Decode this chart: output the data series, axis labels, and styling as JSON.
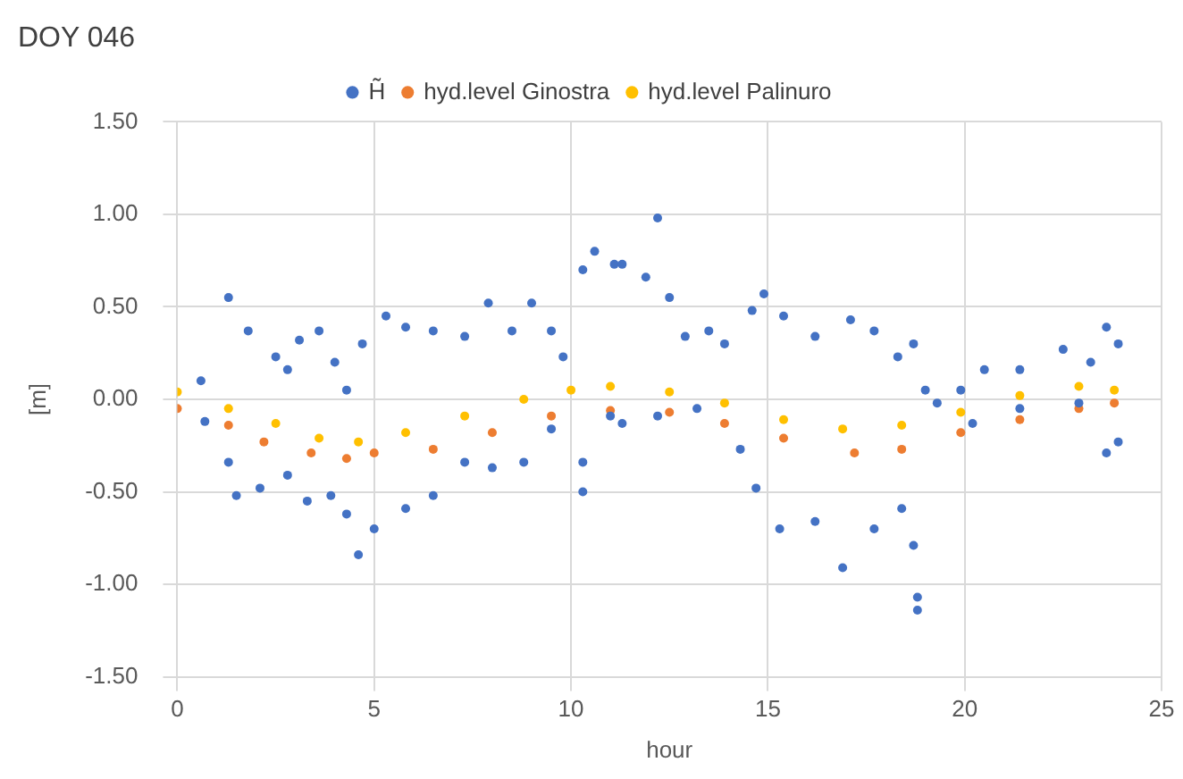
{
  "chart_data": {
    "type": "scatter",
    "title": "DOY 046",
    "xlabel": "hour",
    "ylabel": "[m]",
    "xlim": [
      0,
      25
    ],
    "xticks": [
      0,
      5,
      10,
      15,
      20,
      25
    ],
    "ylim": [
      -1.5,
      1.5
    ],
    "yticks": [
      {
        "value": 1.5,
        "label": "1.50"
      },
      {
        "value": 1,
        "label": "1.00"
      },
      {
        "value": 0.5,
        "label": "0.50"
      },
      {
        "value": 0,
        "label": "0.00"
      },
      {
        "value": -0.5,
        "label": "-0.50"
      },
      {
        "value": -1,
        "label": "-1.00"
      },
      {
        "value": -1.5,
        "label": "-1.50"
      }
    ],
    "grid": true,
    "legend": "top",
    "marker": "circle",
    "series": [
      {
        "name": "H̃",
        "color": "#4472c4",
        "x": [
          0.6,
          0.7,
          1.3,
          1.3,
          1.5,
          1.8,
          2.1,
          2.5,
          2.8,
          2.8,
          3.1,
          3.3,
          3.6,
          3.9,
          4.0,
          4.3,
          4.3,
          4.6,
          4.7,
          5.0,
          5.3,
          5.8,
          5.8,
          6.5,
          6.5,
          7.3,
          7.3,
          7.9,
          8.0,
          8.5,
          8.8,
          9.0,
          9.5,
          9.5,
          9.8,
          10.3,
          10.3,
          10.3,
          10.6,
          11.0,
          11.1,
          11.3,
          11.3,
          11.9,
          12.2,
          12.2,
          12.5,
          12.9,
          13.2,
          13.5,
          13.9,
          14.3,
          14.6,
          14.7,
          14.9,
          15.3,
          15.4,
          16.2,
          16.2,
          16.9,
          17.1,
          17.7,
          17.7,
          18.3,
          18.4,
          18.7,
          18.7,
          18.8,
          18.8,
          19.0,
          19.3,
          19.9,
          20.2,
          20.5,
          21.4,
          21.4,
          22.5,
          22.9,
          23.2,
          23.6,
          23.6,
          23.9,
          23.9
        ],
        "values": [
          0.1,
          -0.12,
          0.55,
          -0.34,
          -0.52,
          0.37,
          -0.48,
          0.23,
          0.16,
          -0.41,
          0.32,
          -0.55,
          0.37,
          -0.52,
          0.2,
          0.05,
          -0.62,
          -0.84,
          0.3,
          -0.7,
          0.45,
          0.39,
          -0.59,
          0.37,
          -0.52,
          0.34,
          -0.34,
          0.52,
          -0.37,
          0.37,
          -0.34,
          0.52,
          0.37,
          -0.16,
          0.23,
          0.7,
          -0.34,
          -0.5,
          0.8,
          -0.09,
          0.73,
          0.73,
          -0.13,
          0.66,
          0.98,
          -0.09,
          0.55,
          0.34,
          -0.05,
          0.37,
          0.3,
          -0.27,
          0.48,
          -0.48,
          0.57,
          -0.7,
          0.45,
          0.34,
          -0.66,
          -0.91,
          0.43,
          0.37,
          -0.7,
          0.23,
          -0.59,
          0.3,
          -0.79,
          -1.07,
          -1.14,
          0.05,
          -0.02,
          0.05,
          -0.13,
          0.16,
          0.16,
          -0.05,
          0.27,
          -0.02,
          0.2,
          0.39,
          -0.29,
          0.3,
          -0.23
        ]
      },
      {
        "name": "hyd.level Ginostra",
        "color": "#ed7d31",
        "x": [
          0,
          1.3,
          2.2,
          3.4,
          4.3,
          5.0,
          6.5,
          8.0,
          9.5,
          11.0,
          12.5,
          13.9,
          15.4,
          17.2,
          18.4,
          19.9,
          21.4,
          22.9,
          23.8
        ],
        "values": [
          -0.05,
          -0.14,
          -0.23,
          -0.29,
          -0.32,
          -0.29,
          -0.27,
          -0.18,
          -0.09,
          -0.06,
          -0.07,
          -0.13,
          -0.21,
          -0.29,
          -0.27,
          -0.18,
          -0.11,
          -0.05,
          -0.02
        ]
      },
      {
        "name": "hyd.level Palinuro",
        "color": "#ffc000",
        "x": [
          0,
          1.3,
          2.5,
          3.6,
          4.6,
          5.8,
          7.3,
          8.8,
          10.0,
          11.0,
          12.5,
          13.9,
          15.4,
          16.9,
          18.4,
          19.9,
          21.4,
          22.9,
          23.8
        ],
        "values": [
          0.04,
          -0.05,
          -0.13,
          -0.21,
          -0.23,
          -0.18,
          -0.09,
          0.0,
          0.05,
          0.07,
          0.04,
          -0.02,
          -0.11,
          -0.16,
          -0.14,
          -0.07,
          0.02,
          0.07,
          0.05
        ]
      }
    ]
  }
}
